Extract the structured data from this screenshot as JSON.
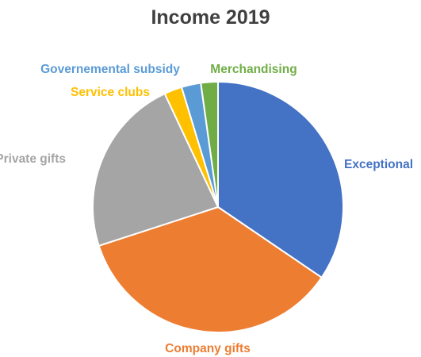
{
  "chart_data": {
    "type": "pie",
    "title": "Income 2019",
    "slices": [
      {
        "label": "Exceptional",
        "value": 34.5,
        "color": "#4472C4"
      },
      {
        "label": "Company gifts",
        "value": 35.5,
        "color": "#ED7D31"
      },
      {
        "label": "Private gifts",
        "value": 23.0,
        "color": "#A5A5A5"
      },
      {
        "label": "Service clubs",
        "value": 2.3,
        "color": "#FFC000"
      },
      {
        "label": "Governemental subsidy",
        "value": 2.5,
        "color": "#5B9BD5"
      },
      {
        "label": "Merchandising",
        "value": 2.2,
        "color": "#70AD47"
      }
    ],
    "start_angle_deg": 0,
    "direction": "clockwise",
    "legend": "none",
    "data_labels": "category names outside slices, colored like their slice"
  }
}
